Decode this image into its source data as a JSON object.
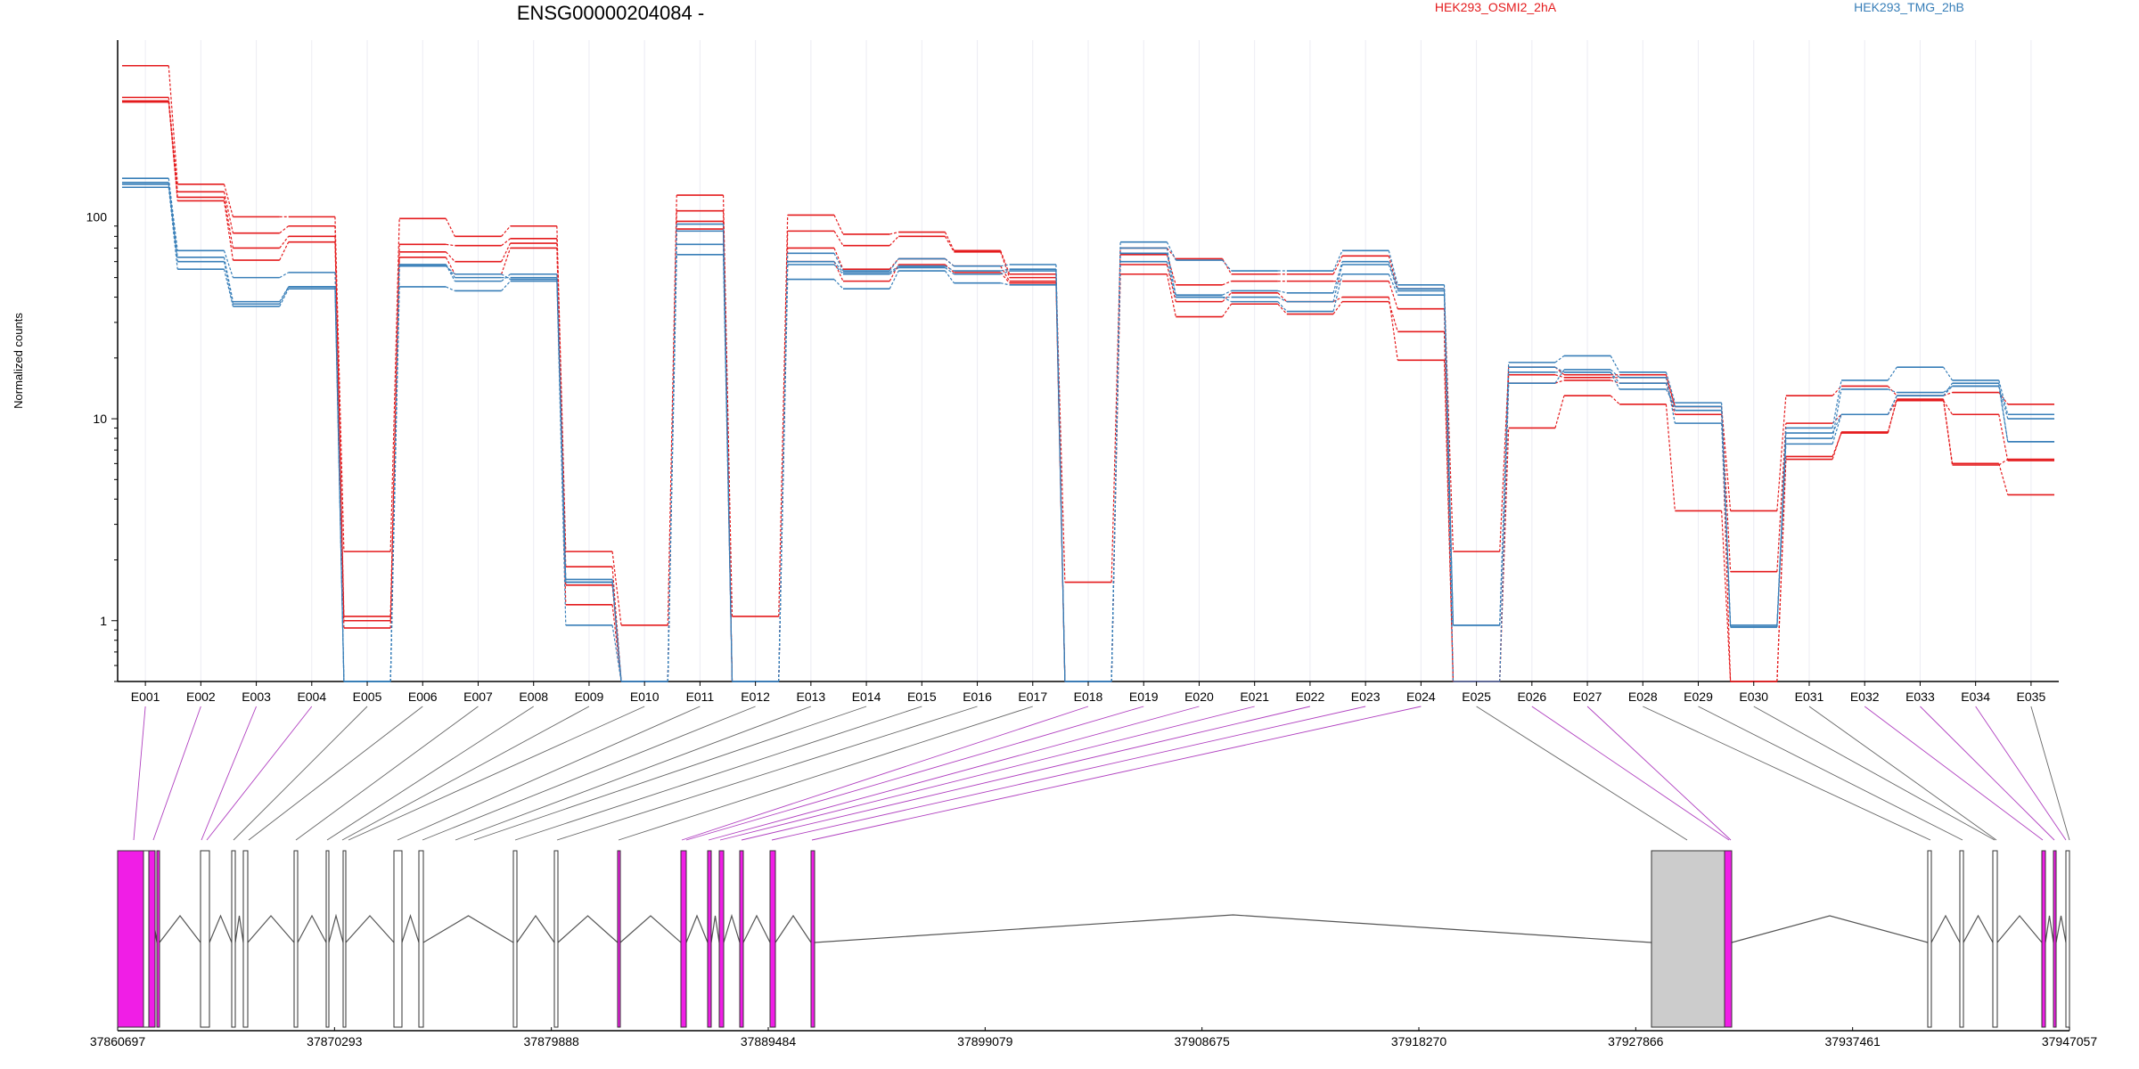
{
  "chart_data": {
    "type": "line",
    "title": "ENSG00000204084 -",
    "ylabel": "Normalized counts",
    "yscale": "log",
    "ylim": [
      0.5,
      750
    ],
    "yticks": [
      1,
      10,
      100
    ],
    "ytick_labels": [
      "1",
      "10",
      "100"
    ],
    "categories": [
      "E001",
      "E002",
      "E003",
      "E004",
      "E005",
      "E006",
      "E007",
      "E008",
      "E009",
      "E010",
      "E011",
      "E012",
      "E013",
      "E014",
      "E015",
      "E016",
      "E017",
      "E018",
      "E019",
      "E020",
      "E021",
      "E022",
      "E023",
      "E024",
      "E025",
      "E026",
      "E027",
      "E028",
      "E029",
      "E030",
      "E031",
      "E032",
      "E033",
      "E034",
      "E035"
    ],
    "legend": [
      {
        "name": "HEK293_OSMI2_2hA",
        "color": "#e41a1c"
      },
      {
        "name": "HEK293_TMG_2hB",
        "color": "#377eb8"
      }
    ],
    "series": [
      {
        "group": "HEK293_OSMI2_2hA",
        "color": "#e41a1c",
        "values": [
          560,
          145,
          100,
          100,
          2.2,
          98,
          80,
          90,
          2.2,
          0.95,
          128,
          1.05,
          102,
          82,
          84,
          68,
          52,
          1.55,
          70,
          62,
          52,
          52,
          64,
          44,
          2.2,
          18,
          16.5,
          16.5,
          11.5,
          3.5,
          13,
          14.5,
          13,
          13.5,
          11.8
        ]
      },
      {
        "group": "HEK293_OSMI2_2hA",
        "color": "#e41a1c",
        "values": [
          390,
          133,
          83,
          90,
          1.05,
          73,
          72,
          78,
          1.85,
          0.5,
          107,
          0.5,
          85,
          72,
          80,
          67,
          50,
          0.5,
          65,
          46,
          48,
          48,
          48,
          35,
          0.5,
          16.5,
          16,
          16,
          11.5,
          1.75,
          9.5,
          10.5,
          12.3,
          10.5,
          6.2
        ]
      },
      {
        "group": "HEK293_OSMI2_2hA",
        "color": "#e41a1c",
        "values": [
          370,
          120,
          61,
          75,
          0.92,
          63,
          52,
          70,
          1.5,
          0.5,
          87,
          0.5,
          60,
          48,
          58,
          53,
          47,
          0.5,
          52,
          32,
          37,
          33,
          38,
          27,
          0.5,
          15,
          15.5,
          15,
          10.5,
          0.5,
          6.5,
          8.5,
          12.5,
          6,
          4.2
        ]
      },
      {
        "group": "HEK293_OSMI2_2hA",
        "color": "#e41a1c",
        "values": [
          375,
          125,
          70,
          80,
          1.0,
          67,
          60,
          74,
          1.2,
          0.5,
          95,
          0.5,
          70,
          55,
          62,
          57,
          48,
          0.5,
          58,
          38,
          42,
          38,
          40,
          19.5,
          0.5,
          9,
          13,
          11.8,
          3.5,
          0.5,
          6.3,
          8.6,
          12.4,
          5.9,
          6.3
        ]
      },
      {
        "group": "HEK293_TMG_2hB",
        "color": "#377eb8",
        "values": [
          155,
          68,
          50,
          53,
          0.5,
          58,
          48,
          52,
          1.6,
          0.5,
          92,
          0.5,
          66,
          54,
          62,
          57,
          58,
          0.5,
          75,
          61,
          54,
          54,
          68,
          46,
          0.95,
          19,
          20.5,
          17,
          12,
          0.95,
          9,
          15.5,
          18,
          15.5,
          10.5
        ]
      },
      {
        "group": "HEK293_TMG_2hB",
        "color": "#377eb8",
        "values": [
          145,
          60,
          37,
          45,
          0.5,
          57,
          52,
          49,
          1.55,
          0.5,
          73,
          0.5,
          60,
          53,
          57,
          54,
          55,
          0.5,
          66,
          41,
          43,
          42,
          60,
          44,
          0.95,
          18,
          17,
          14,
          11.5,
          0.95,
          8,
          14,
          13.5,
          14.5,
          7.7
        ]
      },
      {
        "group": "HEK293_TMG_2hB",
        "color": "#377eb8",
        "values": [
          140,
          55,
          36,
          44,
          0.5,
          45,
          43,
          48,
          0.95,
          0.5,
          65,
          0.5,
          49,
          44,
          54,
          47,
          46,
          0.5,
          60,
          40,
          38,
          34,
          52,
          41,
          0.5,
          15,
          17.5,
          16,
          9.5,
          0.93,
          7.5,
          10.5,
          13,
          15,
          7.7
        ]
      },
      {
        "group": "HEK293_TMG_2hB",
        "color": "#377eb8",
        "values": [
          148,
          63,
          38,
          45,
          0.5,
          58,
          50,
          50,
          1.55,
          0.5,
          85,
          0.5,
          58,
          52,
          56,
          52,
          54,
          0.5,
          70,
          40,
          40,
          38,
          58,
          43,
          0.95,
          17,
          17,
          15,
          11,
          0.93,
          8.5,
          10.5,
          13,
          14.5,
          10
        ]
      }
    ],
    "gene_model": {
      "coord_labels": [
        "37860697",
        "37870293",
        "37879888",
        "37889484",
        "37899079",
        "37908675",
        "37918270",
        "37927866",
        "37937461",
        "37947057"
      ]
    }
  }
}
